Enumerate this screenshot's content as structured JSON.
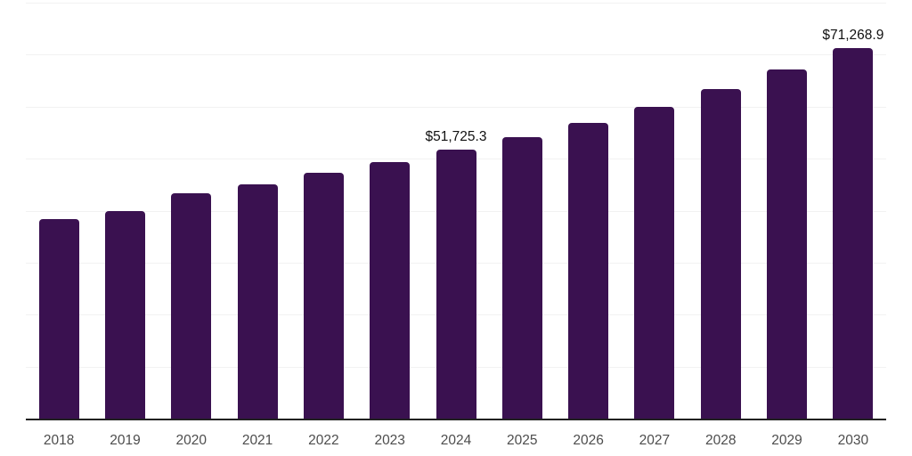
{
  "chart_data": {
    "type": "bar",
    "title": "",
    "xlabel": "",
    "ylabel": "",
    "categories": [
      "2018",
      "2019",
      "2020",
      "2021",
      "2022",
      "2023",
      "2024",
      "2025",
      "2026",
      "2027",
      "2028",
      "2029",
      "2030"
    ],
    "values": [
      38300,
      39900,
      43300,
      45100,
      47200,
      49400,
      51725.3,
      54100,
      56900,
      60000,
      63400,
      67200,
      71268.9
    ],
    "data_labels": [
      {
        "index": 6,
        "text": "$51,725.3"
      },
      {
        "index": 12,
        "text": "$71,268.9"
      }
    ],
    "ylim": [
      0,
      80000
    ],
    "gridline_step": 10000,
    "grid": "horizontal",
    "legend": "none",
    "colors": {
      "bar": "#3a1150",
      "gridline": "#f2f2f2",
      "axis_line": "#212121",
      "tick_label": "#4d4d4d",
      "data_label": "#111111",
      "background": "#ffffff"
    }
  }
}
